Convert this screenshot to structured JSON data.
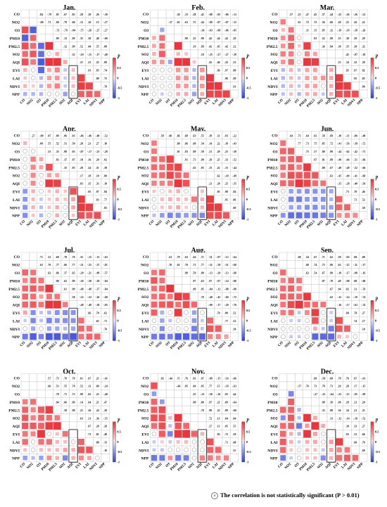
{
  "chart_data": {
    "type": "heatmap",
    "variables": [
      "CO",
      "NO2",
      "O3",
      "PM10",
      "PM2.5",
      "SO2",
      "AQI",
      "EVI",
      "LAI",
      "NDVI",
      "NPP"
    ],
    "colorbar": {
      "label": "p",
      "ticks": [
        "1",
        "0.5",
        "0",
        "-0.5",
        "-1"
      ]
    },
    "colors": {
      "positive": "#e8343a",
      "negative": "#2f3fd6",
      "grid": "#bfbfbf",
      "box": "#555555"
    },
    "legend": "The correlation is not statistically significant (P > 0.01)",
    "panels": [
      {
        "title": "Jan.",
        "rows": [
          [
            0.84,
            -0.79,
            0.85,
            0.67,
            0.83,
            0.28,
            0.18,
            0.26,
            -0.3
          ],
          [
            -0.8,
            0.71,
            0.68,
            0.79,
            0.6,
            0.12,
            0.1,
            0.15,
            -0.27
          ],
          [
            -0.73,
            -0.7,
            -0.84,
            -0.75,
            -0.26,
            -0.27,
            -0.27
          ],
          [
            0.99,
            0.13,
            0.99,
            0.35,
            0.38,
            0.4,
            -0.08
          ],
          [
            0.32,
            0.99,
            0.52,
            0.44,
            0.55,
            0.08
          ],
          [
            0.32,
            -0.18,
            -0.15,
            -0.17,
            -0.4
          ],
          [
            0.21,
            0.23,
            0.25,
            0.09
          ],
          [
            0.91,
            0.95,
            0.74
          ],
          [
            0.89,
            0.75
          ],
          [
            0.7
          ]
        ]
      },
      {
        "title": "Feb.",
        "rows": [
          [
            0.3,
            0.33,
            0.28,
            0.42,
            -0.08,
            -0.05,
            -0.06,
            -0.13
          ],
          [
            -0.37,
            0.65,
            0.63,
            0.75,
            0.44,
            -0.09,
            -0.07,
            -0.07,
            -0.15
          ],
          [
            -0.36,
            -0.03,
            -0.08,
            -0.06,
            -0.05
          ],
          [
            0.99,
            0.25,
            0.99,
            0.42,
            0.44,
            0.42,
            0.29
          ],
          [
            0.19,
            0.99,
            0.42,
            0.45,
            0.42,
            0.32
          ],
          [
            0.18,
            -0.25,
            -0.27,
            -0.27,
            -0.39
          ],
          [
            0.43,
            0.46,
            0.43,
            0.32
          ],
          [
            0.96,
            0.97,
            0.88
          ],
          [
            0.98,
            0.9
          ],
          [
            0.91
          ]
        ]
      },
      {
        "title": "Mar.",
        "rows": [
          [
            0.57,
            0.23,
            0.47,
            0.45,
            0.57,
            0.44,
            -0.25,
            -0.26,
            -0.26,
            -0.21
          ],
          [
            0.61,
            0.72,
            0.72,
            0.56,
            0.66,
            0.28,
            0.25,
            0.26,
            0.22
          ],
          [
            0.11,
            0.15,
            0.05,
            0.12,
            -0.19,
            -0.18,
            -0.18,
            -0.26
          ],
          [
            0.93,
            0.52,
            0.99,
            0.35,
            0.38,
            0.38,
            0.29
          ],
          [
            0.36,
            0.94,
            0.38,
            0.35,
            0.38,
            0.32
          ],
          [
            0.45,
            -0.07,
            -0.18
          ],
          [
            0.33,
            0.34,
            0.32,
            0.28
          ],
          [
            0.95,
            0.97,
            0.82
          ],
          [
            0.95,
            0.85
          ],
          [
            0.84
          ]
        ]
      },
      {
        "title": "Apr.",
        "rows": [
          [
            0.27,
            -0.09,
            0.07,
            0.09,
            0.06,
            0.03,
            -0.46,
            -0.46,
            -0.48,
            -0.52
          ],
          [
            0.09,
            0.55,
            0.52,
            0.51,
            0.5,
            0.28,
            0.23,
            0.27,
            0.18
          ],
          [
            0.33,
            0.35,
            0.08,
            0.03,
            -0.07,
            -0.17,
            -0.23,
            -0.28
          ],
          [
            0.83,
            0.37,
            0.97,
            0.18,
            0.16,
            0.2,
            0.02
          ],
          [
            0.35,
            0.93,
            0.28,
            0.24,
            0.31,
            0.3
          ],
          [
            0.17,
            0.18,
            0.1,
            0.0
          ],
          [
            0.83,
            0.35,
            0.33,
            0.19
          ],
          [
            0.95,
            0.97,
            0.84
          ],
          [
            0.93,
            0.77
          ],
          [
            0.85
          ]
        ]
      },
      {
        "title": "May.",
        "rows": [
          [
            0.58,
            0.6,
            0.66,
            0.68,
            0.63,
            0.55,
            0.18,
            0.11,
            0.03,
            -0.22
          ],
          [
            0.68,
            0.66,
            0.68,
            0.54,
            0.14,
            0.22,
            0.18,
            -0.43
          ],
          [
            0.91,
            0.83,
            0.89,
            0.59,
            0.21,
            0.29,
            0.25,
            -0.58
          ],
          [
            0.91,
            0.73,
            0.99,
            0.29,
            0.25,
            0.33,
            -0.52
          ],
          [
            0.63,
            0.83,
            0.13,
            0.22,
            0.15,
            -0.44
          ],
          [
            0.62,
            -0.1,
            -0.49
          ],
          [
            0.21,
            0.28,
            0.25,
            -0.55
          ],
          [
            0.95,
            0.98,
            0.84
          ],
          [
            0.95,
            0.86
          ],
          [
            0.8
          ]
        ]
      },
      {
        "title": "Jun.",
        "rows": [
          [
            0.64,
            0.73,
            0.64,
            0.63,
            0.58,
            0.69,
            -0.1,
            -0.11,
            -0.06,
            -0.48
          ],
          [
            0.77,
            0.73,
            0.75,
            0.85,
            0.72,
            -0.41,
            -0.56,
            -0.39,
            -0.72
          ],
          [
            0.75,
            0.57,
            0.8,
            0.99,
            -0.44,
            -0.62,
            -0.42,
            -0.71
          ],
          [
            0.97,
            0.81,
            0.89,
            -0.49,
            -0.46,
            -0.51,
            -0.66
          ],
          [
            0.8,
            0.67,
            -0.49,
            -0.49,
            -0.52,
            -0.66
          ],
          [
            0.63,
            -0.45,
            -0.49,
            -0.41,
            -0.6
          ],
          [
            -0.35,
            -0.28,
            -0.4,
            -0.5
          ],
          [
            0.73,
            0.7,
            0.46
          ],
          [
            0.73,
            0.52
          ],
          [
            0.5
          ]
        ]
      },
      {
        "title": "Jul.",
        "rows": [
          [
            0.71,
            0.52,
            0.69,
            0.7,
            0.7,
            0.35,
            -0.15,
            -0.13,
            -0.63
          ],
          [
            0.63,
            0.7,
            0.77,
            0.66,
            0.77,
            -0.51,
            -0.55,
            -0.37,
            -0.81
          ],
          [
            0.62,
            0.66,
            0.37,
            0.62,
            -0.2,
            -0.21,
            -0.09,
            -0.57
          ],
          [
            0.98,
            0.62,
            0.99,
            -0.3,
            -0.58,
            -0.39,
            -0.84
          ],
          [
            0.61,
            0.99,
            -0.48,
            -0.49,
            -0.37,
            -0.84
          ],
          [
            0.58,
            -0.52,
            -0.52,
            -0.26,
            -0.68
          ],
          [
            -0.48,
            -0.49,
            -0.38,
            -0.85
          ],
          [
            0.66,
            0.7,
            0.62
          ],
          [
            0.65,
            0.71
          ],
          [
            0.7
          ]
        ]
      },
      {
        "title": "Aug.",
        "rows": [
          [
            0.61,
            0.79,
            0.63,
            0.64,
            0.71,
            0.74,
            -0.07,
            -0.13,
            -0.64
          ],
          [
            0.7,
            0.63,
            0.7,
            0.71,
            0.77,
            -0.31,
            -0.39,
            -0.51,
            -0.68
          ],
          [
            0.99,
            0.59,
            0.8,
            -0.13,
            -0.2,
            -0.13,
            -0.6
          ],
          [
            0.97,
            0.63,
            0.97,
            -0.07,
            -0.14,
            -0.8
          ],
          [
            0.89,
            0.85,
            -0.04,
            -0.12,
            -0.08,
            -0.8
          ],
          [
            0.7,
            -0.4,
            -0.45,
            -0.6,
            -0.72
          ],
          [
            -0.09,
            -0.17,
            -0.2,
            -0.76
          ],
          [
            0.7,
            0.8,
            0.52
          ],
          [
            0.77,
            0.52
          ],
          [
            0.38
          ]
        ]
      },
      {
        "title": "Sep.",
        "rows": [
          [
            0.68,
            0.54,
            0.67,
            0.71,
            0.62,
            0.58,
            -0.03,
            0.08,
            0.08
          ],
          [
            0.68,
            0.74,
            0.73,
            0.86,
            0.63,
            -0.15,
            -0.11,
            -0.17
          ],
          [
            0.62,
            0.54,
            0.67,
            0.99,
            -0.19,
            -0.17,
            -0.08,
            -0.16
          ],
          [
            0.97,
            0.7,
            0.49,
            -0.08,
            0.08,
            -0.08
          ],
          [
            0.67,
            0.94,
            0.82,
            0.31,
            -0.76
          ],
          [
            0.62,
            -0.12,
            -0.14,
            -0.19,
            -0.74
          ],
          [
            -0.16,
            -0.17,
            -0.63,
            -0.74
          ],
          [
            0.84,
            0.78,
            0.27
          ],
          [
            0.74,
            0.17
          ],
          [
            0.1
          ]
        ]
      },
      {
        "title": "Oct.",
        "rows": [
          [
            0.57,
            0.73,
            0.78,
            0.79,
            0.61,
            0.67,
            0.21,
            -0.41
          ],
          [
            0.66,
            0.53,
            0.55,
            0.78,
            0.52,
            0.13,
            0.09,
            -0.24
          ],
          [
            0.78,
            0.71,
            0.73,
            0.99,
            0.65,
            0.23,
            -0.4
          ],
          [
            0.94,
            0.66,
            0.96,
            0.14,
            0.64,
            0.21,
            0.47
          ],
          [
            0.58,
            0.98,
            0.21,
            0.26,
            0.24,
            0.28
          ],
          [
            0.63,
            0.21,
            0.36,
            -0.55
          ],
          [
            0.07,
            0.28,
            0.28
          ],
          [
            0.73,
            0.81,
            0.48
          ],
          [
            0.8,
            0.33
          ],
          [
            0.1
          ]
        ]
      },
      {
        "title": "Nov.",
        "rows": [
          [
            0.82,
            -0.44,
            0.71,
            0.76,
            0.83,
            0.67,
            -0.09,
            -0.15,
            -0.16,
            -0.66
          ],
          [
            -0.44,
            0.85,
            0.84,
            0.85,
            0.77,
            0.15,
            -0.18,
            -0.63
          ],
          [
            0.25,
            -0.21,
            -0.58,
            -0.16,
            0.05,
            0.44
          ],
          [
            0.98,
            0.8,
            0.97,
            0.21,
            0.09,
            -0.64
          ],
          [
            0.7,
            0.99,
            0.23,
            0.09,
            -0.6
          ],
          [
            0.72,
            0.13,
            0.04,
            0.04
          ],
          [
            0.27,
            0.13,
            0.05,
            0.55
          ],
          [
            0.83,
            0.72,
            0.58
          ],
          [
            0.71,
            0.48
          ],
          [
            0.55
          ]
        ]
      },
      {
        "title": "Dec.",
        "rows": [
          [
            0.69,
            -0.5,
            0.68,
            0.7,
            0.76,
            0.67,
            -0.61
          ],
          [
            -0.57,
            0.76,
            0.73,
            0.78,
            0.73,
            0.29,
            0.28,
            0.17,
            -0.15
          ],
          [
            -0.27,
            -0.23,
            -0.64,
            -0.25,
            -0.15,
            -0.05,
            -0.09
          ],
          [
            0.98,
            0.39,
            0.98,
            0.29,
            0.21,
            0.2
          ],
          [
            0.33,
            0.98,
            0.36,
            0.34,
            0.21,
            0.21
          ],
          [
            0.33,
            -0.12,
            -0.14,
            -0.18,
            -0.52
          ],
          [
            0.39,
            0.33,
            0.27
          ],
          [
            0.93,
            0.53,
            0.66
          ],
          [
            0.6,
            0.76
          ],
          [
            0.69
          ]
        ]
      }
    ]
  }
}
